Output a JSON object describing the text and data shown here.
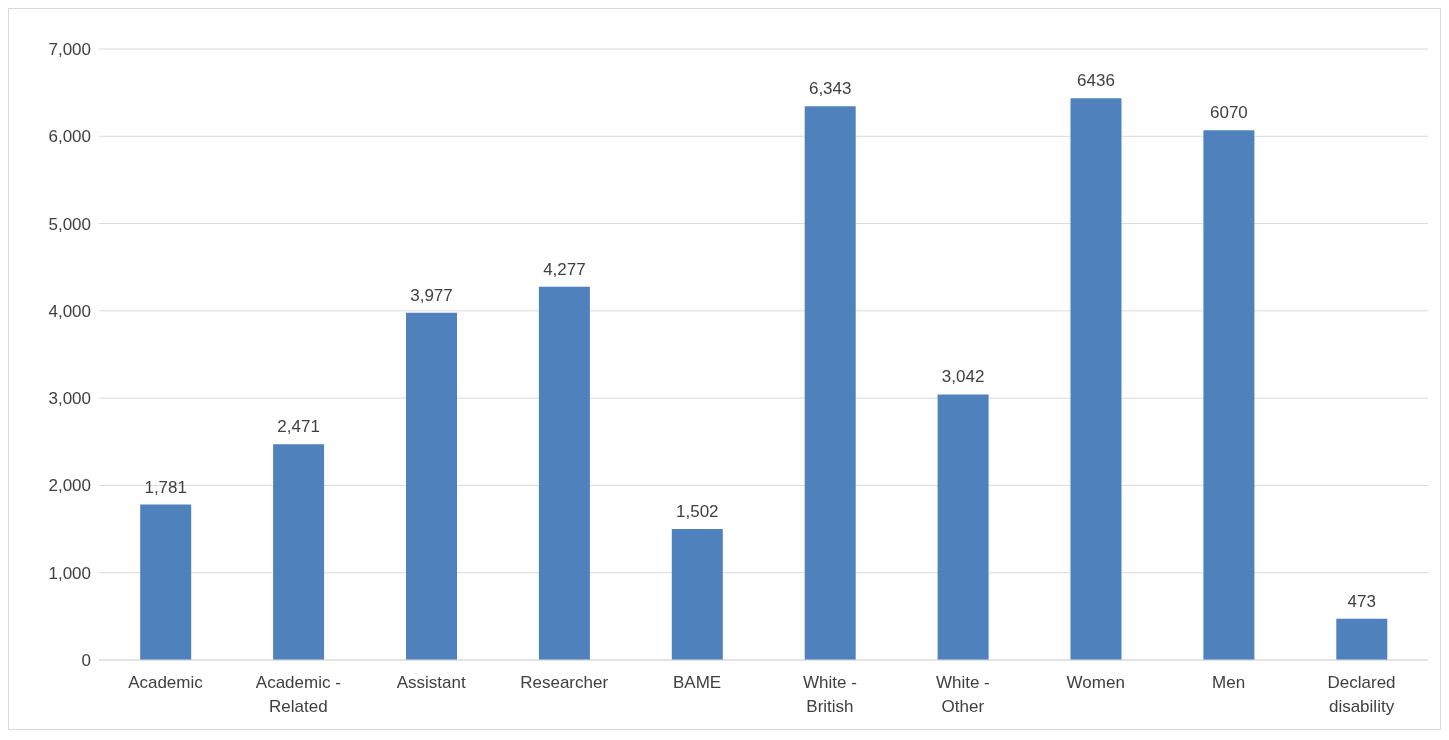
{
  "chart_data": {
    "type": "bar",
    "categories": [
      "Academic",
      "Academic - Related",
      "Assistant",
      "Researcher",
      "BAME",
      "White - British",
      "White - Other",
      "Women",
      "Men",
      "Declared disability"
    ],
    "values": [
      1781,
      2471,
      3977,
      4277,
      1502,
      6343,
      3042,
      6436,
      6070,
      473
    ],
    "value_labels": [
      "1,781",
      "2,471",
      "3,977",
      "4,277",
      "1,502",
      "6,343",
      "3,042",
      "6436",
      "6070",
      "473"
    ],
    "color": "#4f81bd",
    "ylim": [
      0,
      7000
    ],
    "yticks": [
      0,
      {
        "value": 1000,
        "label": "1,000"
      },
      {
        "value": 2000,
        "label": "2,000"
      },
      {
        "value": 3000,
        "label": "3,000"
      },
      {
        "value": 4000,
        "label": "4,000"
      },
      {
        "value": 5000,
        "label": "5,000"
      },
      {
        "value": 6000,
        "label": "6,000"
      },
      {
        "value": 7000,
        "label": "7,000"
      }
    ],
    "grid": "y"
  }
}
